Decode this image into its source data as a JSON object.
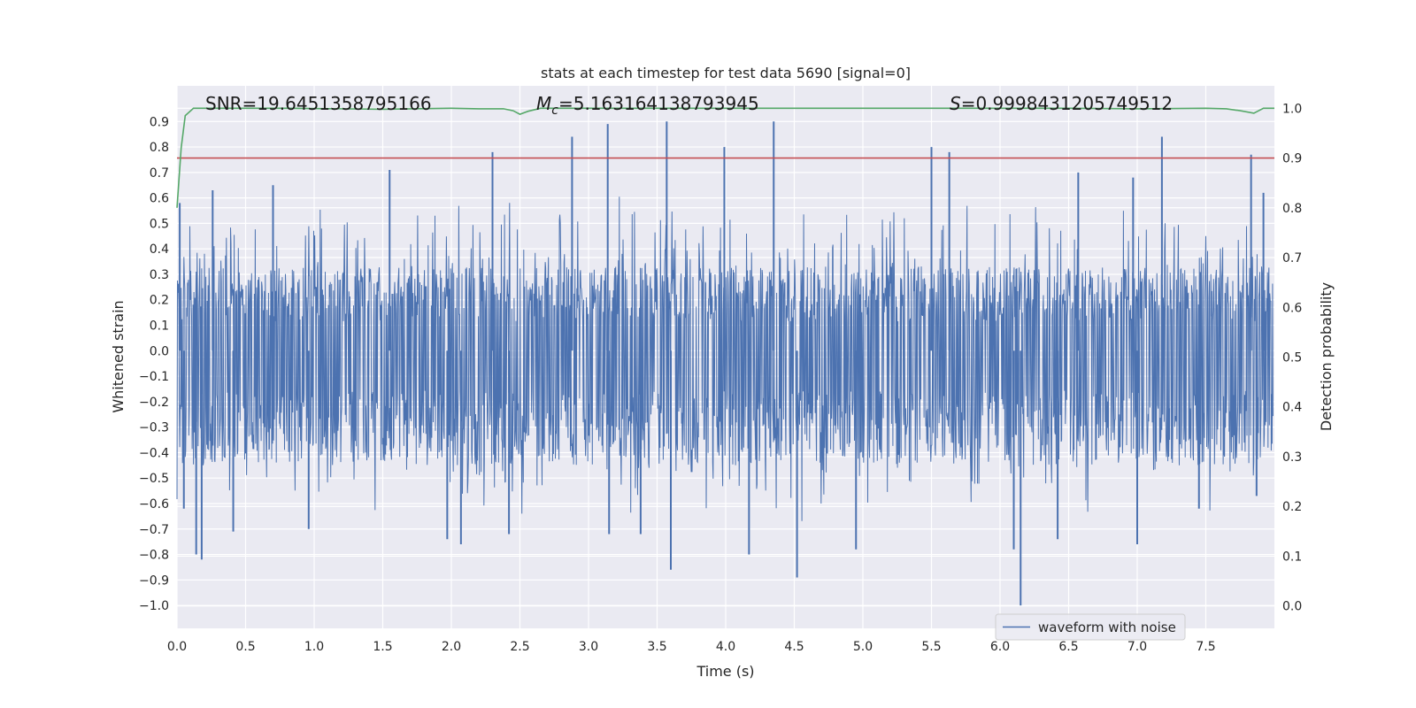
{
  "chart_data": {
    "type": "line",
    "title": "stats at each timestep for test data 5690 [signal=0]",
    "xlabel": "Time (s)",
    "ylabel": "Whitened strain",
    "y2label": "Detection probability",
    "xlim": [
      0.0,
      8.0
    ],
    "ylim": [
      -1.09,
      1.04
    ],
    "y2lim": [
      -0.045,
      1.045
    ],
    "xticks": [
      0.0,
      0.5,
      1.0,
      1.5,
      2.0,
      2.5,
      3.0,
      3.5,
      4.0,
      4.5,
      5.0,
      5.5,
      6.0,
      6.5,
      7.0,
      7.5
    ],
    "xtick_labels": [
      "0.0",
      "0.5",
      "1.0",
      "1.5",
      "2.0",
      "2.5",
      "3.0",
      "3.5",
      "4.0",
      "4.5",
      "5.0",
      "5.5",
      "6.0",
      "6.5",
      "7.0",
      "7.5"
    ],
    "yticks": [
      0.9,
      0.8,
      0.7,
      0.6,
      0.5,
      0.4,
      0.3,
      0.2,
      0.1,
      0.0,
      -0.1,
      -0.2,
      -0.3,
      -0.4,
      -0.5,
      -0.6,
      -0.7,
      -0.8,
      -0.9,
      -1.0
    ],
    "ytick_labels": [
      "0.9",
      "0.8",
      "0.7",
      "0.6",
      "0.5",
      "0.4",
      "0.3",
      "0.2",
      "0.1",
      "0.0",
      "−0.1",
      "−0.2",
      "−0.3",
      "−0.4",
      "−0.5",
      "−0.6",
      "−0.7",
      "−0.8",
      "−0.9",
      "−1.0"
    ],
    "y2ticks": [
      1.0,
      0.9,
      0.8,
      0.7,
      0.6,
      0.5,
      0.4,
      0.3,
      0.2,
      0.1,
      0.0
    ],
    "y2tick_labels": [
      "1.0",
      "0.9",
      "0.8",
      "0.7",
      "0.6",
      "0.5",
      "0.4",
      "0.3",
      "0.2",
      "0.1",
      "0.0"
    ],
    "annotations": {
      "snr": "SNR=19.6451358795166",
      "mc_symbol": "M",
      "mc_sub": "c",
      "mc_value": "=5.163164138793945",
      "s_symbol": "S",
      "s_value": "=0.9998431205749512"
    },
    "legend": {
      "label": "waveform with noise",
      "location": "lower right"
    },
    "series": [
      {
        "name": "waveform with noise",
        "axis": "left",
        "color": "#4c72b0",
        "kind": "dense-noise",
        "typical_range": [
          -0.45,
          0.33
        ],
        "spikes": [
          {
            "x": 0.02,
            "y": 0.58
          },
          {
            "x": 0.05,
            "y": -0.62
          },
          {
            "x": 0.14,
            "y": -0.8
          },
          {
            "x": 0.18,
            "y": -0.82
          },
          {
            "x": 0.26,
            "y": 0.63
          },
          {
            "x": 0.41,
            "y": -0.71
          },
          {
            "x": 0.7,
            "y": 0.65
          },
          {
            "x": 0.96,
            "y": -0.7
          },
          {
            "x": 1.55,
            "y": 0.71
          },
          {
            "x": 1.97,
            "y": -0.74
          },
          {
            "x": 2.07,
            "y": -0.76
          },
          {
            "x": 2.3,
            "y": 0.78
          },
          {
            "x": 2.42,
            "y": -0.72
          },
          {
            "x": 2.88,
            "y": 0.84
          },
          {
            "x": 3.14,
            "y": 0.89
          },
          {
            "x": 3.15,
            "y": -0.72
          },
          {
            "x": 3.38,
            "y": -0.72
          },
          {
            "x": 3.57,
            "y": 0.9
          },
          {
            "x": 3.6,
            "y": -0.86
          },
          {
            "x": 3.99,
            "y": 0.8
          },
          {
            "x": 4.17,
            "y": -0.8
          },
          {
            "x": 4.35,
            "y": 0.9
          },
          {
            "x": 4.52,
            "y": -0.89
          },
          {
            "x": 4.95,
            "y": -0.78
          },
          {
            "x": 5.5,
            "y": 0.8
          },
          {
            "x": 5.63,
            "y": 0.78
          },
          {
            "x": 6.1,
            "y": -0.78
          },
          {
            "x": 6.15,
            "y": -1.0
          },
          {
            "x": 6.42,
            "y": -0.74
          },
          {
            "x": 6.57,
            "y": 0.7
          },
          {
            "x": 6.97,
            "y": 0.68
          },
          {
            "x": 7.0,
            "y": -0.76
          },
          {
            "x": 7.18,
            "y": 0.84
          },
          {
            "x": 7.45,
            "y": -0.62
          },
          {
            "x": 7.83,
            "y": 0.77
          },
          {
            "x": 7.87,
            "y": -0.57
          },
          {
            "x": 7.92,
            "y": 0.62
          }
        ]
      },
      {
        "name": "detection probability",
        "axis": "right",
        "color": "#55a868",
        "x": [
          0.0,
          0.03,
          0.06,
          0.12,
          0.3,
          0.8,
          1.5,
          2.0,
          2.2,
          2.38,
          2.45,
          2.5,
          2.56,
          2.65,
          3.0,
          4.0,
          5.0,
          6.0,
          6.5,
          7.0,
          7.5,
          7.65,
          7.75,
          7.85,
          7.92,
          8.0
        ],
        "y": [
          0.8,
          0.92,
          0.985,
          1.0,
          1.0,
          1.0,
          0.998,
          1.0,
          0.999,
          0.999,
          0.995,
          0.988,
          0.994,
          1.0,
          1.0,
          1.0,
          1.0,
          1.0,
          1.0,
          0.999,
          1.0,
          0.999,
          0.995,
          0.99,
          1.0,
          1.0
        ]
      },
      {
        "name": "threshold",
        "axis": "right",
        "color": "#c44e52",
        "y": 0.9
      }
    ]
  }
}
